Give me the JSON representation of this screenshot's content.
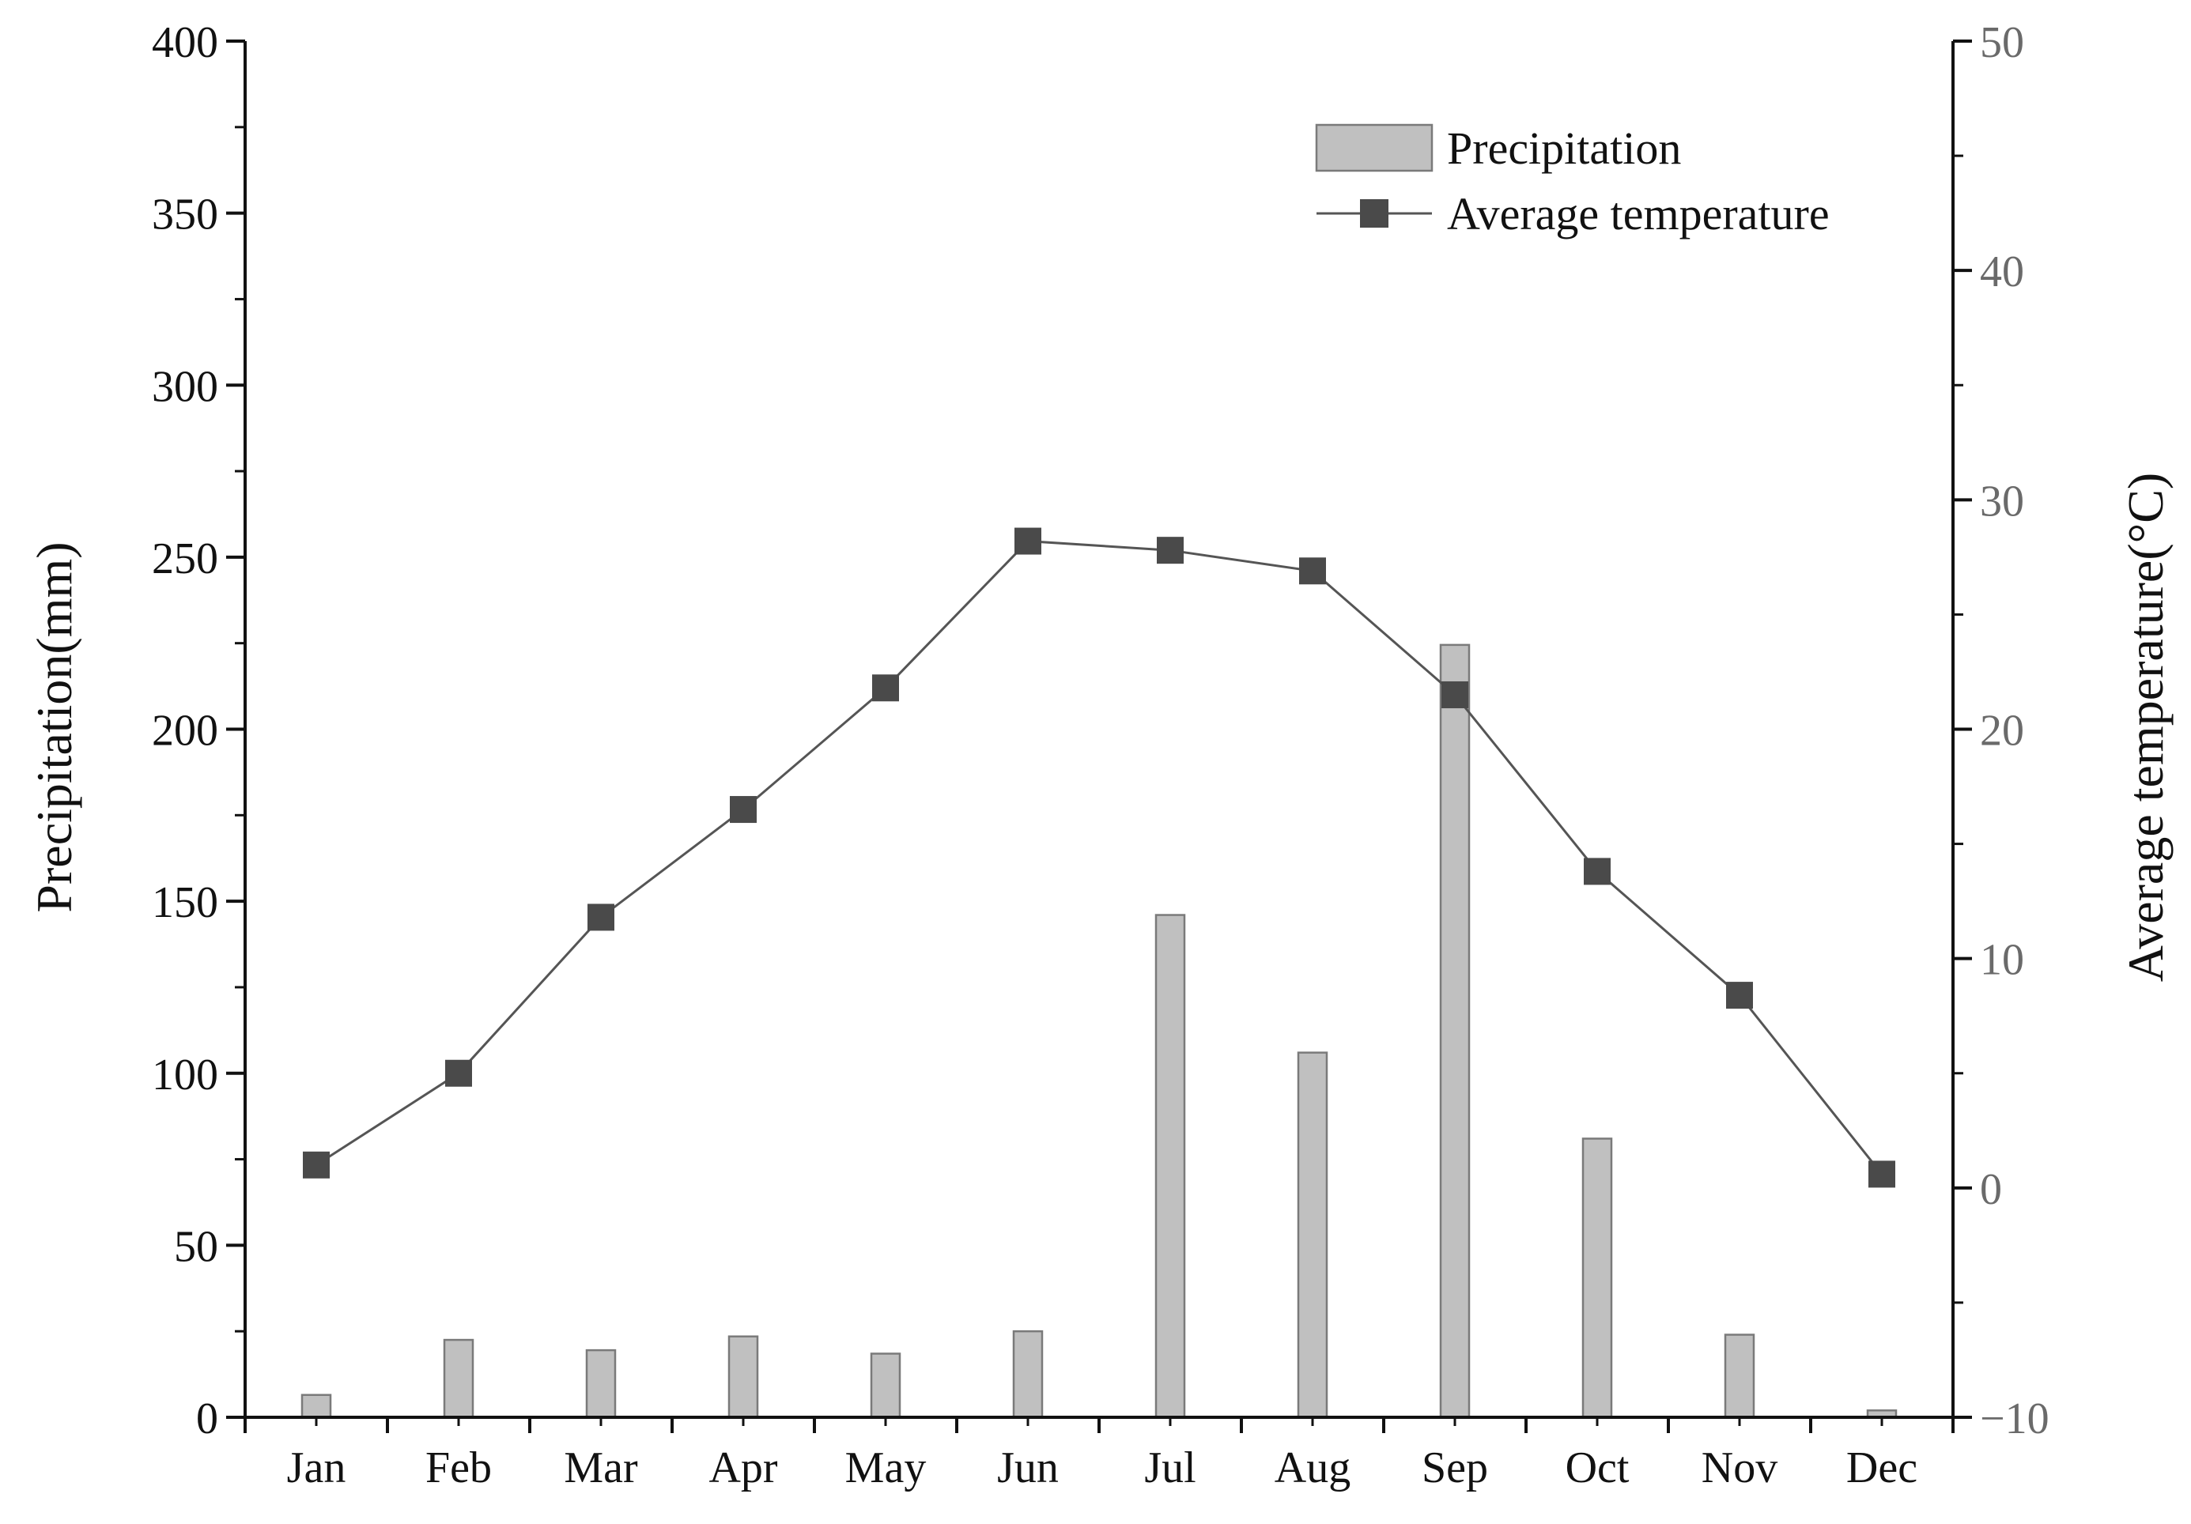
{
  "chart_data": {
    "type": "bar+line",
    "categories": [
      "Jan",
      "Feb",
      "Mar",
      "Apr",
      "May",
      "Jun",
      "Jul",
      "Aug",
      "Sep",
      "Oct",
      "Nov",
      "Dec"
    ],
    "series": [
      {
        "name": "Precipitation",
        "kind": "bar",
        "axis": "left",
        "values": [
          6.5,
          22.5,
          19.5,
          23.5,
          18.5,
          25,
          146,
          106,
          224.5,
          81,
          24,
          2
        ]
      },
      {
        "name": "Average temperature",
        "kind": "line",
        "axis": "right",
        "values": [
          1.0,
          5.0,
          11.8,
          16.5,
          21.8,
          28.2,
          27.8,
          26.9,
          21.5,
          13.8,
          8.4,
          0.6
        ]
      }
    ],
    "ylabel": "Precipitation(mm)",
    "ylabel_right": "Average temperature(°C)",
    "ylim": [
      0,
      400
    ],
    "ylim_right": [
      -10,
      50
    ],
    "yticks": [
      0,
      50,
      100,
      150,
      200,
      250,
      300,
      350,
      400
    ],
    "yticks_right": [
      -10,
      0,
      10,
      20,
      30,
      40,
      50
    ],
    "grid": false,
    "legend": {
      "position": "top-right",
      "entries": [
        "Precipitation",
        "Average temperature"
      ]
    },
    "colors": {
      "bar_fill": "#c0c0c0",
      "bar_stroke": "#7a7a7a",
      "line": "#555555",
      "marker": "#4a4a4a",
      "axis": "#111111",
      "right_axis_text": "#6a6a6a"
    }
  }
}
